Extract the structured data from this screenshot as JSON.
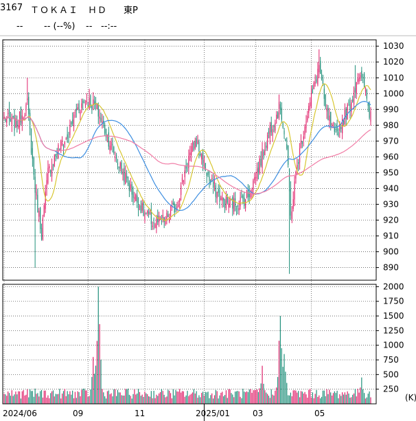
{
  "header": {
    "code": "3167",
    "name": "ＴＯＫＡＩ　ＨＤ",
    "market": "東P",
    "price": "--",
    "change": "-- (--%)",
    "volume": "--",
    "time": "--:--"
  },
  "colors": {
    "up": "#e0206a",
    "down": "#1f8f7a",
    "ma_short": "#d7c630",
    "ma_mid": "#3b8de0",
    "ma_long": "#f07aa4",
    "grid": "#555555"
  },
  "chart_data": [
    {
      "type": "candlestick",
      "series": [
        {
          "name": "price",
          "note": "daily OHLC candlesticks"
        },
        {
          "name": "ma_short"
        },
        {
          "name": "ma_mid"
        },
        {
          "name": "ma_long"
        }
      ],
      "y_ticks": [
        890,
        900,
        910,
        920,
        930,
        940,
        950,
        960,
        970,
        980,
        990,
        1000,
        1010,
        1020,
        1030
      ],
      "ylim": [
        882,
        1034
      ],
      "x_ticks": [
        "2024/06",
        "09",
        "11",
        "2025/01",
        "03",
        "05"
      ],
      "grid": "dotted",
      "close_keypoints": [
        {
          "d": "2024-06-03",
          "v": 985
        },
        {
          "d": "2024-06-14",
          "v": 980
        },
        {
          "d": "2024-06-27",
          "v": 993
        },
        {
          "d": "2024-07-05",
          "v": 940
        },
        {
          "d": "2024-07-12",
          "v": 912
        },
        {
          "d": "2024-07-19",
          "v": 950
        },
        {
          "d": "2024-07-31",
          "v": 965
        },
        {
          "d": "2024-08-09",
          "v": 972
        },
        {
          "d": "2024-08-20",
          "v": 990
        },
        {
          "d": "2024-08-30",
          "v": 996
        },
        {
          "d": "2024-09-10",
          "v": 992
        },
        {
          "d": "2024-09-20",
          "v": 975
        },
        {
          "d": "2024-10-04",
          "v": 955
        },
        {
          "d": "2024-10-18",
          "v": 938
        },
        {
          "d": "2024-10-31",
          "v": 925
        },
        {
          "d": "2024-11-12",
          "v": 918
        },
        {
          "d": "2024-11-25",
          "v": 920
        },
        {
          "d": "2024-12-06",
          "v": 930
        },
        {
          "d": "2024-12-18",
          "v": 958
        },
        {
          "d": "2024-12-27",
          "v": 970
        },
        {
          "d": "2025-01-10",
          "v": 945
        },
        {
          "d": "2025-01-24",
          "v": 932
        },
        {
          "d": "2025-02-07",
          "v": 930
        },
        {
          "d": "2025-02-21",
          "v": 935
        },
        {
          "d": "2025-03-07",
          "v": 958
        },
        {
          "d": "2025-03-18",
          "v": 978
        },
        {
          "d": "2025-03-28",
          "v": 992
        },
        {
          "d": "2025-04-04",
          "v": 965
        },
        {
          "d": "2025-04-09",
          "v": 922
        },
        {
          "d": "2025-04-16",
          "v": 955
        },
        {
          "d": "2025-04-25",
          "v": 985
        },
        {
          "d": "2025-05-02",
          "v": 1000
        },
        {
          "d": "2025-05-09",
          "v": 1018
        },
        {
          "d": "2025-05-16",
          "v": 990
        },
        {
          "d": "2025-05-27",
          "v": 972
        },
        {
          "d": "2025-06-05",
          "v": 985
        },
        {
          "d": "2025-06-13",
          "v": 995
        },
        {
          "d": "2025-06-20",
          "v": 1012
        },
        {
          "d": "2025-06-27",
          "v": 1005
        },
        {
          "d": "2025-07-03",
          "v": 988
        }
      ],
      "price_spikes": [
        {
          "d": "2024-06-27",
          "high": 1010
        },
        {
          "d": "2024-07-05",
          "low": 890
        },
        {
          "d": "2024-09-03",
          "high": 1003
        },
        {
          "d": "2025-04-08",
          "low": 886
        },
        {
          "d": "2025-05-09",
          "high": 1028
        },
        {
          "d": "2025-06-18",
          "high": 1018
        }
      ]
    },
    {
      "type": "bar",
      "series": [
        {
          "name": "volume"
        }
      ],
      "y_unit": "(K)",
      "y_ticks": [
        250,
        500,
        750,
        1000,
        1250,
        1500,
        1750,
        2000
      ],
      "ylim": [
        0,
        2040
      ],
      "x_ticks": [
        "2024/06",
        "09",
        "11",
        "2025/01",
        "03",
        "05"
      ],
      "volume_peaks": [
        {
          "d": "2024-09-12",
          "v": 2000
        },
        {
          "d": "2024-09-06",
          "v": 800
        },
        {
          "d": "2025-03-28",
          "v": 1500
        },
        {
          "d": "2025-04-02",
          "v": 850
        },
        {
          "d": "2025-03-10",
          "v": 650
        },
        {
          "d": "2025-06-25",
          "v": 450
        }
      ]
    }
  ]
}
